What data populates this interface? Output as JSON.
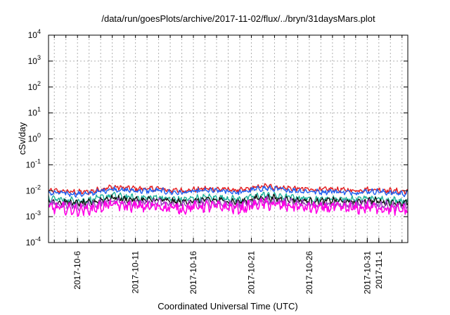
{
  "chart_data": {
    "type": "line",
    "title": "/data/run/goesPlots/archive/2017-11-02/flux/../bryn/31daysMars.plot",
    "xlabel": "Coordinated Universal Time (UTC)",
    "ylabel": "cSv/day",
    "yscale": "log",
    "ylim": [
      0.0001,
      10000
    ],
    "xlim": [
      "2017-10-03T12:00",
      "2017-11-03T12:00"
    ],
    "grid": true,
    "legend": "none",
    "y_ticks": [
      {
        "base": "10",
        "exp": "-4",
        "value": 0.0001
      },
      {
        "base": "10",
        "exp": "-3",
        "value": 0.001
      },
      {
        "base": "10",
        "exp": "-2",
        "value": 0.01
      },
      {
        "base": "10",
        "exp": "-1",
        "value": 0.1
      },
      {
        "base": "10",
        "exp": "0",
        "value": 1
      },
      {
        "base": "10",
        "exp": "1",
        "value": 10
      },
      {
        "base": "10",
        "exp": "2",
        "value": 100
      },
      {
        "base": "10",
        "exp": "3",
        "value": 1000
      },
      {
        "base": "10",
        "exp": "4",
        "value": 10000
      }
    ],
    "x_ticks": [
      {
        "label": "2017-10-6",
        "value": "2017-10-06"
      },
      {
        "label": "2017-10-11",
        "value": "2017-10-11"
      },
      {
        "label": "2017-10-16",
        "value": "2017-10-16"
      },
      {
        "label": "2017-10-21",
        "value": "2017-10-21"
      },
      {
        "label": "2017-10-26",
        "value": "2017-10-26"
      },
      {
        "label": "2017-10-31",
        "value": "2017-10-31"
      },
      {
        "label": "2017-11-1",
        "value": "2017-11-01"
      }
    ],
    "x": [
      "2017-10-03",
      "2017-10-04",
      "2017-10-05",
      "2017-10-06",
      "2017-10-07",
      "2017-10-08",
      "2017-10-09",
      "2017-10-10",
      "2017-10-11",
      "2017-10-12",
      "2017-10-13",
      "2017-10-14",
      "2017-10-15",
      "2017-10-16",
      "2017-10-17",
      "2017-10-18",
      "2017-10-19",
      "2017-10-20",
      "2017-10-21",
      "2017-10-22",
      "2017-10-23",
      "2017-10-24",
      "2017-10-25",
      "2017-10-26",
      "2017-10-27",
      "2017-10-28",
      "2017-10-29",
      "2017-10-30",
      "2017-10-31",
      "2017-11-01",
      "2017-11-02",
      "2017-11-03"
    ],
    "series": [
      {
        "color": "#e41a1c",
        "values": [
          0.0095,
          0.0098,
          0.0093,
          0.0088,
          0.009,
          0.0115,
          0.014,
          0.0128,
          0.012,
          0.0118,
          0.0122,
          0.0105,
          0.01,
          0.011,
          0.012,
          0.0118,
          0.0112,
          0.01,
          0.0125,
          0.015,
          0.014,
          0.0128,
          0.012,
          0.0112,
          0.0108,
          0.0114,
          0.0106,
          0.0102,
          0.0115,
          0.011,
          0.01,
          0.0094
        ]
      },
      {
        "color": "#1f5ff0",
        "values": [
          0.008,
          0.0082,
          0.0078,
          0.0074,
          0.0076,
          0.0095,
          0.0118,
          0.0105,
          0.01,
          0.0098,
          0.0102,
          0.0088,
          0.0084,
          0.0092,
          0.01,
          0.0098,
          0.0094,
          0.0084,
          0.0105,
          0.0125,
          0.0116,
          0.0106,
          0.01,
          0.0094,
          0.009,
          0.0096,
          0.0088,
          0.0085,
          0.0096,
          0.0092,
          0.0083,
          0.0078
        ]
      },
      {
        "color": "#1fb29a",
        "values": [
          0.0046,
          0.0048,
          0.0044,
          0.0041,
          0.0043,
          0.0053,
          0.0065,
          0.0058,
          0.0054,
          0.0053,
          0.0056,
          0.0048,
          0.0045,
          0.005,
          0.0055,
          0.0053,
          0.0051,
          0.0045,
          0.0057,
          0.0068,
          0.0063,
          0.0057,
          0.0054,
          0.005,
          0.0048,
          0.0052,
          0.0047,
          0.0045,
          0.0052,
          0.0049,
          0.0044,
          0.0041
        ]
      },
      {
        "color": "#111111",
        "values": [
          0.0037,
          0.0039,
          0.0035,
          0.0033,
          0.0034,
          0.0043,
          0.0053,
          0.0047,
          0.0044,
          0.0043,
          0.0045,
          0.0039,
          0.0036,
          0.004,
          0.0044,
          0.0043,
          0.0041,
          0.0036,
          0.0046,
          0.0055,
          0.0051,
          0.0046,
          0.0043,
          0.004,
          0.0038,
          0.0042,
          0.0038,
          0.0036,
          0.0042,
          0.0039,
          0.0035,
          0.0033
        ]
      },
      {
        "color": "#9a3fbf",
        "values": [
          0.0029,
          0.003,
          0.0027,
          0.0025,
          0.0026,
          0.0033,
          0.0041,
          0.0036,
          0.0034,
          0.0033,
          0.0035,
          0.003,
          0.0028,
          0.0031,
          0.0034,
          0.0033,
          0.0032,
          0.0028,
          0.0035,
          0.0042,
          0.0039,
          0.0035,
          0.0033,
          0.0031,
          0.0029,
          0.0032,
          0.0029,
          0.0028,
          0.0032,
          0.003,
          0.0027,
          0.0025
        ]
      },
      {
        "color": "#ff00e6",
        "values": [
          0.0021,
          0.0022,
          0.002,
          0.0018,
          0.0019,
          0.0024,
          0.003,
          0.0026,
          0.0025,
          0.0024,
          0.0025,
          0.0022,
          0.002,
          0.0023,
          0.0025,
          0.0024,
          0.0023,
          0.002,
          0.0026,
          0.0031,
          0.0028,
          0.0026,
          0.0024,
          0.0022,
          0.0021,
          0.0023,
          0.0021,
          0.002,
          0.0023,
          0.0022,
          0.0019,
          0.0018
        ]
      }
    ]
  }
}
